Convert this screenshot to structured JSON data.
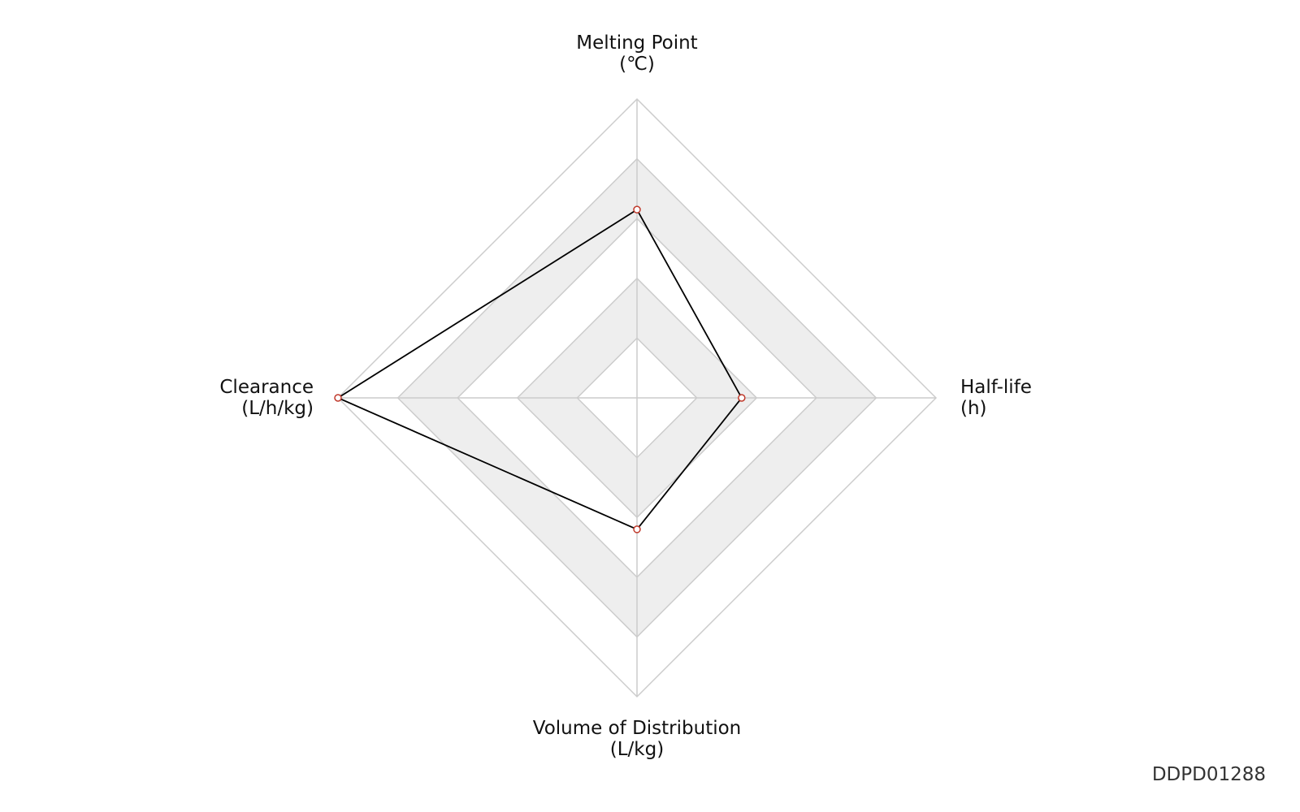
{
  "chart_data": {
    "type": "radar",
    "categories": [
      "Melting Point\n(℃)",
      "Half-life\n(h)",
      "Volume of Distribution\n(L/kg)",
      "Clearance\n(L/h/kg)"
    ],
    "values": [
      0.63,
      0.35,
      0.44,
      1.0
    ],
    "color": "#000000",
    "marker_color": "#c0392b",
    "rlim": [
      0,
      1
    ],
    "rticks": [
      0.2,
      0.4,
      0.6,
      0.8,
      1.0
    ],
    "band_color": "#eeeeee",
    "grid_color": "#cccccc"
  },
  "watermark": "DDPD01288"
}
